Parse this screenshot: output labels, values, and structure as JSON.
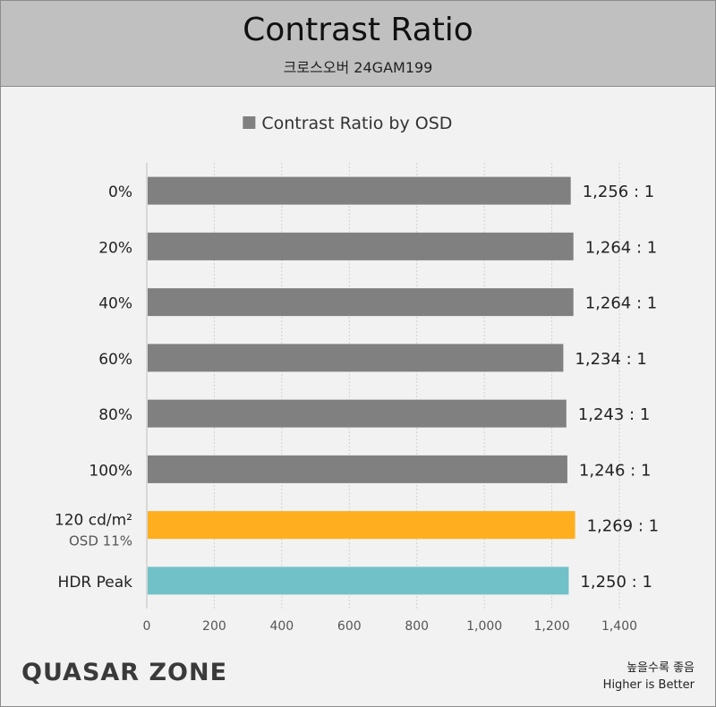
{
  "header": {
    "title": "Contrast Ratio",
    "subtitle": "크로스오버 24GAM199"
  },
  "chart_data": {
    "type": "bar",
    "orientation": "horizontal",
    "legend": {
      "label": "Contrast Ratio by OSD",
      "position": "top-center"
    },
    "categories": [
      "0%",
      "20%",
      "40%",
      "60%",
      "80%",
      "100%",
      "120 cd/m²",
      "HDR Peak"
    ],
    "category_sublabels": [
      "",
      "",
      "",
      "",
      "",
      "",
      "OSD 11%",
      ""
    ],
    "values": [
      1256,
      1264,
      1264,
      1234,
      1243,
      1246,
      1269,
      1250
    ],
    "value_labels": [
      "1,256 : 1",
      "1,264 : 1",
      "1,264 : 1",
      "1,234 : 1",
      "1,243 : 1",
      "1,246 : 1",
      "1,269 : 1",
      "1,250 : 1"
    ],
    "bar_colors": [
      "#808080",
      "#808080",
      "#808080",
      "#808080",
      "#808080",
      "#808080",
      "#ffae1f",
      "#71c1c8"
    ],
    "xlim": [
      0,
      1400
    ],
    "x_ticks": [
      0,
      200,
      400,
      600,
      800,
      1000,
      1200,
      1400
    ],
    "x_tick_labels": [
      "0",
      "200",
      "400",
      "600",
      "800",
      "1,000",
      "1,200",
      "1,400"
    ],
    "grid": true
  },
  "footer": {
    "logo": "QUASAR ZONE",
    "note_ko": "높을수록 좋음",
    "note_en": "Higher is Better"
  }
}
